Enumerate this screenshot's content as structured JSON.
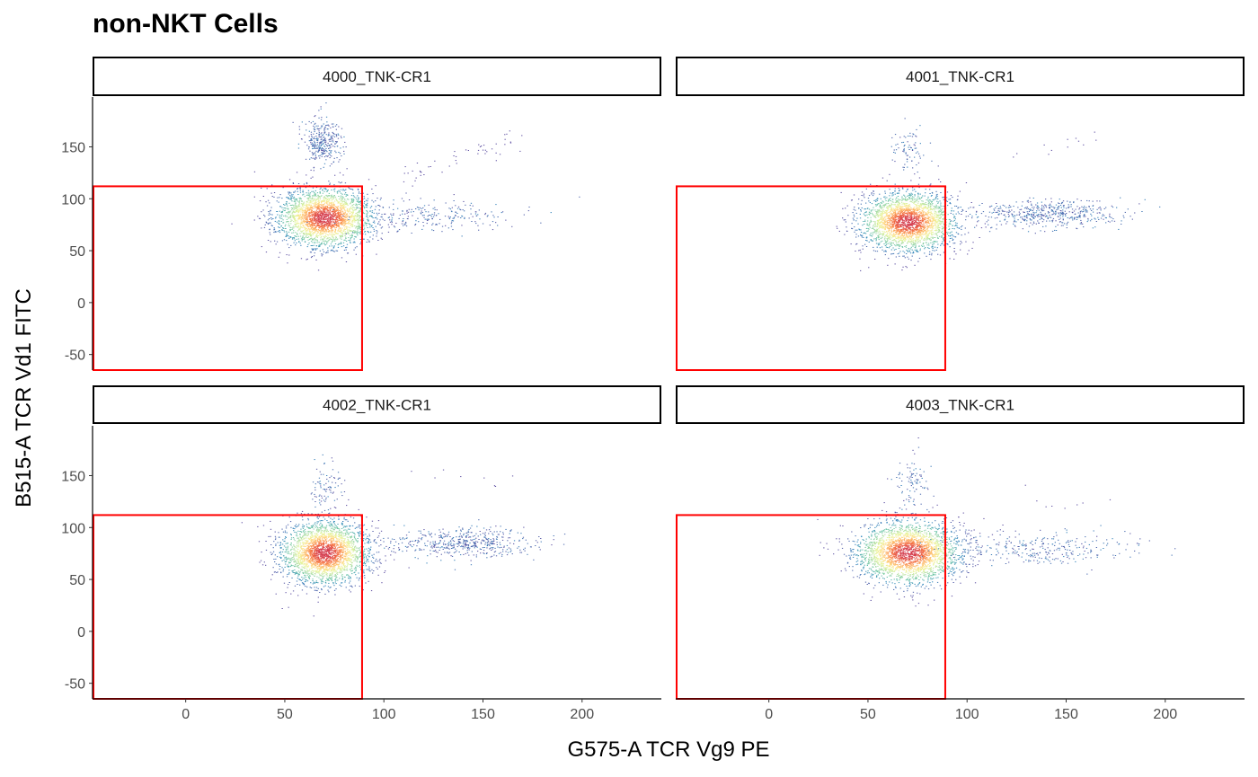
{
  "chart_data": {
    "type": "scatter",
    "title": "non-NKT Cells",
    "xlabel": "G575-A TCR Vg9 PE",
    "ylabel": "B515-A TCR Vd1 FITC",
    "xlim": [
      -47,
      240
    ],
    "ylim": [
      -65,
      198
    ],
    "x_ticks": [
      0,
      50,
      100,
      150,
      200
    ],
    "y_ticks": [
      -50,
      0,
      50,
      100,
      150
    ],
    "grid": false,
    "density_colors": [
      "#5e4fa2",
      "#3288bd",
      "#66c2a5",
      "#abdda4",
      "#e6f598",
      "#fee08b",
      "#fdae61",
      "#f46d43",
      "#d53e4f"
    ],
    "gate_color": "#ff0000",
    "gate": {
      "x": [
        -47,
        89
      ],
      "y": [
        -65,
        112
      ]
    },
    "panels": [
      {
        "label": "4000_TNK-CR1",
        "main": {
          "cx": 70,
          "cy": 82,
          "sx": 12,
          "sy": 14,
          "n": 2600
        },
        "upper": {
          "cx": 69,
          "cy": 155,
          "sx": 5,
          "sy": 11,
          "n": 330
        },
        "right": {
          "cx": 125,
          "cy": 83,
          "sx": 22,
          "sy": 8,
          "n": 230
        },
        "diagonal": {
          "x0": 110,
          "y0": 120,
          "x1": 172,
          "y1": 160,
          "n": 50
        }
      },
      {
        "label": "4001_TNK-CR1",
        "main": {
          "cx": 70,
          "cy": 78,
          "sx": 12,
          "sy": 14,
          "n": 2600
        },
        "upper": {
          "cx": 70,
          "cy": 150,
          "sx": 4,
          "sy": 14,
          "n": 80
        },
        "right": {
          "cx": 140,
          "cy": 86,
          "sx": 18,
          "sy": 7,
          "n": 520
        },
        "diagonal": {
          "x0": 120,
          "y0": 140,
          "x1": 178,
          "y1": 165,
          "n": 12
        }
      },
      {
        "label": "4002_TNK-CR1",
        "main": {
          "cx": 70,
          "cy": 76,
          "sx": 11,
          "sy": 15,
          "n": 2600
        },
        "upper": {
          "cx": 70,
          "cy": 140,
          "sx": 5,
          "sy": 14,
          "n": 90
        },
        "right": {
          "cx": 140,
          "cy": 85,
          "sx": 18,
          "sy": 7,
          "n": 500
        },
        "diagonal": {
          "x0": 115,
          "y0": 150,
          "x1": 170,
          "y1": 140,
          "n": 8
        }
      },
      {
        "label": "4003_TNK-CR1",
        "main": {
          "cx": 70,
          "cy": 76,
          "sx": 13,
          "sy": 15,
          "n": 2600
        },
        "upper": {
          "cx": 72,
          "cy": 145,
          "sx": 5,
          "sy": 14,
          "n": 90
        },
        "right": {
          "cx": 135,
          "cy": 80,
          "sx": 25,
          "sy": 8,
          "n": 320
        },
        "diagonal": {
          "x0": 120,
          "y0": 130,
          "x1": 175,
          "y1": 120,
          "n": 8
        }
      }
    ]
  }
}
